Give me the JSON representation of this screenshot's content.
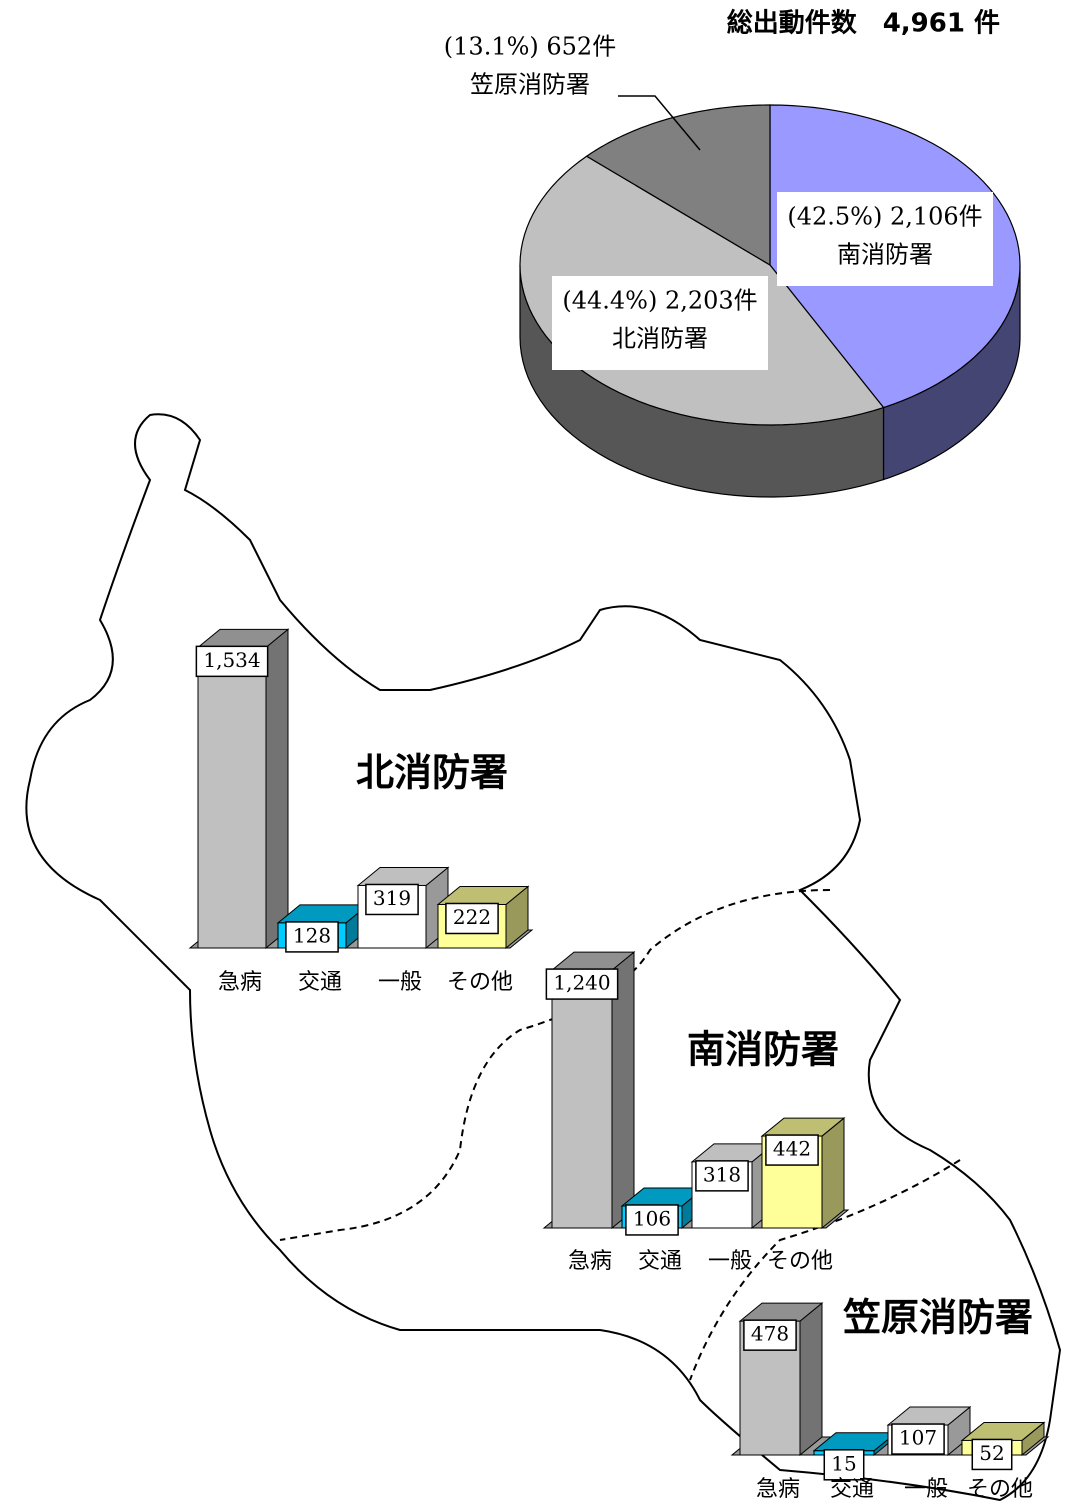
{
  "chart_data": [
    {
      "type": "pie",
      "title": "総出動件数　4,961 件",
      "categories": [
        "南消防署",
        "北消防署",
        "笠原消防署"
      ],
      "values": [
        42.5,
        44.4,
        13.1
      ],
      "value_labels": [
        "(42.5%) 2,106件",
        "(44.4%) 2,203件",
        "(13.1%) 652件"
      ],
      "colors": [
        "#9999ff",
        "#c0c0c0",
        "#808080"
      ]
    },
    {
      "type": "bar",
      "title": "北消防署",
      "categories": [
        "急病",
        "交通",
        "一般",
        "その他"
      ],
      "values": [
        1534,
        128,
        319,
        222
      ],
      "value_labels": [
        "1,534",
        "128",
        "319",
        "222"
      ],
      "colors": [
        "#c0c0c0",
        "#00ccff",
        "#ffffff",
        "#ffff99"
      ]
    },
    {
      "type": "bar",
      "title": "南消防署",
      "categories": [
        "急病",
        "交通",
        "一般",
        "その他"
      ],
      "values": [
        1240,
        106,
        318,
        442
      ],
      "value_labels": [
        "1,240",
        "106",
        "318",
        "442"
      ],
      "colors": [
        "#c0c0c0",
        "#00ccff",
        "#ffffff",
        "#ffff99"
      ]
    },
    {
      "type": "bar",
      "title": "笠原消防署",
      "categories": [
        "急病",
        "交通",
        "一般",
        "その他"
      ],
      "values": [
        478,
        15,
        107,
        52
      ],
      "value_labels": [
        "478",
        "15",
        "107",
        "52"
      ],
      "colors": [
        "#c0c0c0",
        "#00ccff",
        "#ffffff",
        "#ffff99"
      ]
    }
  ]
}
